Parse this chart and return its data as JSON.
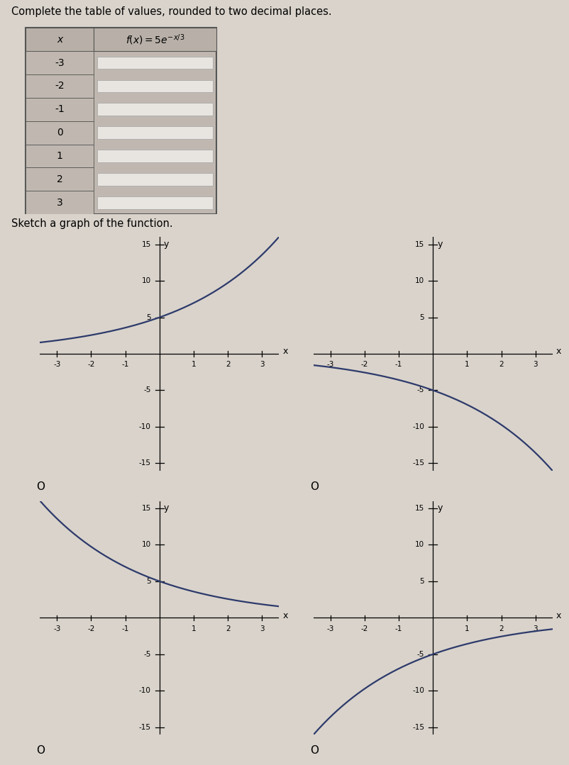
{
  "title": "Complete the table of values, rounded to two decimal places.",
  "x_values": [
    -3,
    -2,
    -1,
    0,
    1,
    2,
    3
  ],
  "sketch_label": "Sketch a graph of the function.",
  "curve_color": "#2d3a6b",
  "curve_linewidth": 1.6,
  "page_color": "#d9d3cb",
  "table_header_bg": "#b8b0a8",
  "table_x_bg": "#c0b8b0",
  "input_bg": "#e8e4e0",
  "input_border": "#aaaaaa",
  "funcs": [
    "5*exp(x/3)",
    "-5*exp(x/3)",
    "5*exp(-x/3)",
    "-5*exp(-x/3)"
  ],
  "graph_xlim": [
    -3.5,
    3.5
  ],
  "graph_ylim": [
    -16,
    16
  ],
  "xticks": [
    -3,
    -2,
    -1,
    1,
    2,
    3
  ],
  "yticks": [
    -15,
    -10,
    -5,
    5,
    10,
    15
  ],
  "tick_label_fontsize": 7.5,
  "axis_label_fontsize": 9,
  "radio_circle": "O"
}
